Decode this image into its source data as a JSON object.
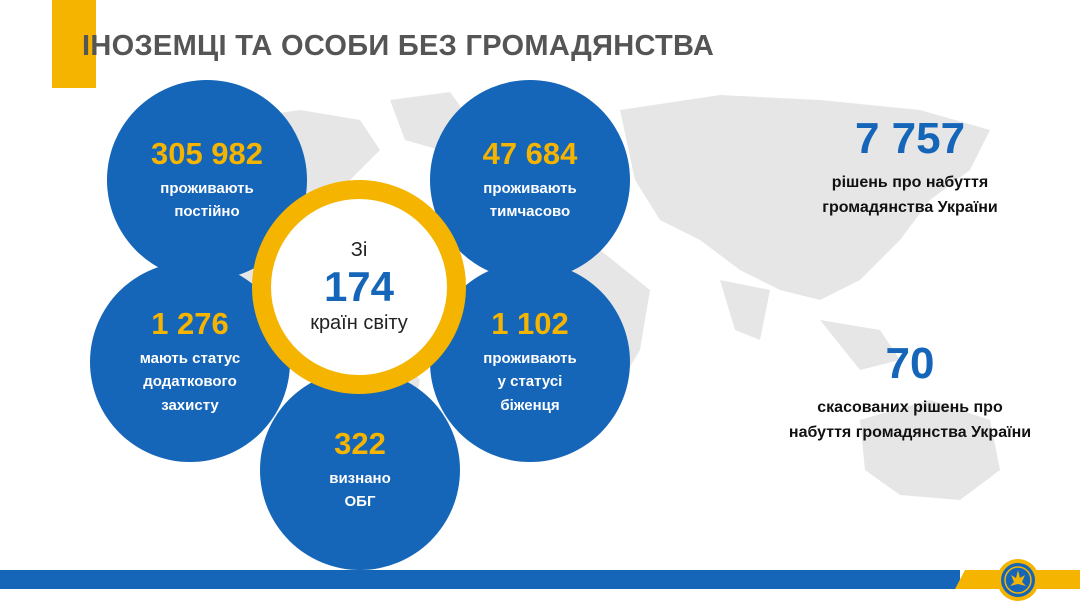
{
  "title": "ІНОЗЕМЦІ ТА ОСОБИ БЕЗ ГРОМАДЯНСТВА",
  "colors": {
    "blue": "#1565b8",
    "yellow": "#f4b400",
    "map": "#e6e6e6"
  },
  "bubbles": [
    {
      "number": "305 982",
      "text": "проживають\nпостійно"
    },
    {
      "number": "47 684",
      "text": "проживають\nтимчасово"
    },
    {
      "number": "1 276",
      "text": "мають статус\nдодаткового\nзахисту"
    },
    {
      "number": "1 102",
      "text": "проживають\nу статусі\nбіженця"
    },
    {
      "number": "322",
      "text": "визнано\nОБГ"
    }
  ],
  "center": {
    "pre": "Зі",
    "number": "174",
    "post": "країн світу"
  },
  "stats": [
    {
      "number": "7 757",
      "text": "рішень про набуття\nгромадянства України"
    },
    {
      "number": "70",
      "text": "скасованих рішень про\nнабуття громадянства України"
    }
  ],
  "icons": {
    "map": "world-map-background",
    "emblem": "agency-emblem"
  }
}
